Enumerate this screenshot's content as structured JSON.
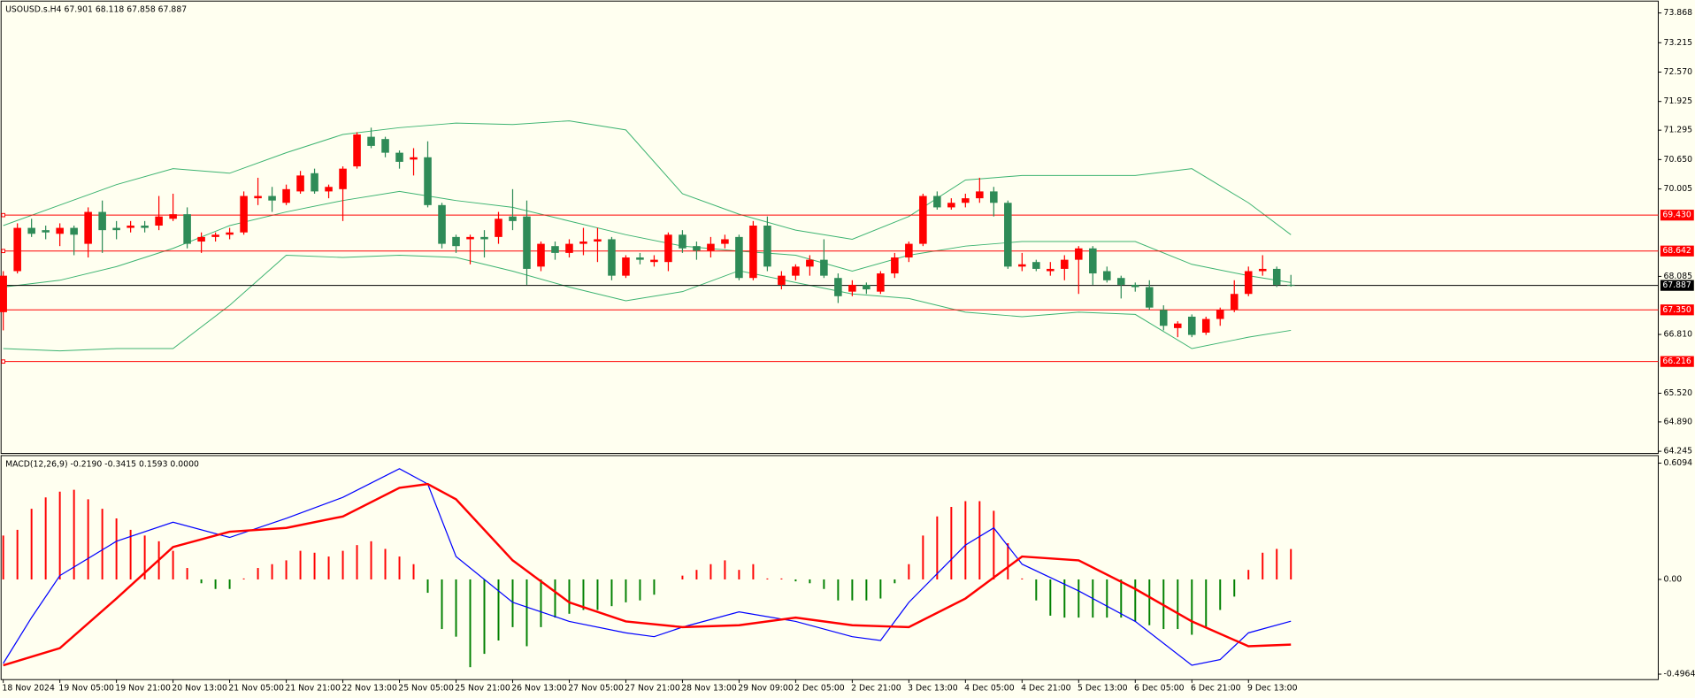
{
  "chart_data": [
    {
      "type": "candlestick",
      "title": "USOUSD.s.H4  67.901 68.118 67.858 67.887",
      "categories": [
        "18 Nov 2024",
        null,
        null,
        null,
        "19 Nov 05:00",
        null,
        null,
        null,
        "19 Nov 21:00",
        null,
        null,
        null,
        "20 Nov 13:00",
        null,
        null,
        null,
        "21 Nov 05:00",
        null,
        null,
        null,
        "21 Nov 21:00",
        null,
        null,
        null,
        "22 Nov 13:00",
        null,
        null,
        null,
        "25 Nov 05:00",
        null,
        null,
        null,
        "25 Nov 21:00",
        null,
        null,
        null,
        "26 Nov 13:00",
        null,
        null,
        null,
        "27 Nov 05:00",
        null,
        null,
        null,
        "27 Nov 21:00",
        null,
        null,
        null,
        "28 Nov 13:00",
        null,
        null,
        null,
        "29 Nov 09:00",
        null,
        null,
        null,
        "2 Dec 05:00",
        null,
        null,
        null,
        "2 Dec 21:00",
        null,
        null,
        null,
        "3 Dec 13:00",
        null,
        null,
        null,
        "4 Dec 05:00",
        null,
        null,
        null,
        "4 Dec 21:00",
        null,
        null,
        null,
        "5 Dec 13:00",
        null,
        null,
        null,
        "6 Dec 05:00",
        null,
        null,
        null,
        "6 Dec 21:00",
        null,
        null,
        null,
        "9 Dec 13:00",
        null,
        null,
        null
      ],
      "open": [
        67.3,
        68.2,
        69.15,
        69.1,
        69.02,
        69.15,
        68.8,
        69.5,
        69.15,
        69.15,
        69.2,
        69.2,
        69.35,
        69.45,
        68.85,
        68.95,
        69.0,
        69.05,
        69.8,
        69.85,
        69.7,
        69.95,
        70.35,
        69.95,
        70.0,
        70.5,
        71.15,
        71.1,
        70.8,
        70.65,
        70.7,
        69.65,
        68.95,
        68.9,
        68.95,
        68.95,
        69.4,
        69.4,
        68.3,
        68.75,
        68.6,
        68.8,
        68.85,
        68.9,
        68.1,
        68.5,
        68.4,
        68.4,
        69.0,
        68.75,
        68.65,
        68.8,
        68.95,
        68.05,
        69.2,
        67.9,
        68.1,
        68.3,
        68.45,
        68.05,
        67.75,
        67.9,
        67.75,
        68.15,
        68.5,
        68.8,
        69.85,
        69.6,
        69.7,
        69.8,
        69.95,
        69.7,
        68.3,
        68.4,
        68.2,
        68.25,
        68.45,
        68.7,
        68.2,
        68.05,
        67.9,
        67.85,
        67.35,
        66.95,
        67.2,
        66.85,
        67.15,
        67.35,
        67.7,
        68.2,
        68.25,
        67.901
      ],
      "high": [
        68.2,
        69.25,
        69.35,
        69.2,
        69.25,
        69.2,
        69.6,
        69.75,
        69.3,
        69.3,
        69.3,
        69.85,
        69.9,
        69.6,
        69.05,
        69.05,
        69.15,
        69.95,
        70.25,
        70.05,
        70.1,
        70.4,
        70.45,
        70.1,
        70.5,
        71.25,
        71.35,
        71.15,
        70.85,
        70.9,
        71.05,
        69.7,
        69.0,
        69.0,
        69.1,
        69.5,
        70.0,
        69.75,
        68.85,
        68.85,
        68.9,
        69.15,
        69.15,
        68.95,
        68.55,
        68.6,
        68.55,
        69.05,
        69.1,
        68.85,
        68.95,
        69.0,
        69.0,
        69.3,
        69.4,
        68.2,
        68.35,
        68.55,
        68.9,
        68.15,
        68.0,
        67.95,
        68.2,
        68.6,
        68.85,
        69.9,
        69.95,
        69.8,
        69.9,
        70.25,
        70.05,
        69.75,
        68.6,
        68.45,
        68.4,
        68.55,
        68.75,
        68.75,
        68.3,
        68.1,
        67.95,
        68.0,
        67.45,
        67.1,
        67.25,
        67.2,
        67.4,
        68.0,
        68.3,
        68.55,
        68.3,
        68.118
      ],
      "low": [
        66.9,
        68.15,
        68.95,
        68.9,
        68.75,
        68.55,
        68.5,
        68.6,
        68.9,
        69.05,
        69.05,
        69.1,
        69.3,
        68.7,
        68.6,
        68.85,
        68.9,
        69.0,
        69.65,
        69.5,
        69.65,
        69.9,
        69.9,
        69.8,
        69.3,
        70.45,
        70.9,
        70.7,
        70.45,
        70.3,
        69.6,
        68.7,
        68.6,
        68.35,
        68.5,
        68.8,
        69.1,
        67.9,
        68.2,
        68.45,
        68.5,
        68.55,
        68.4,
        68.0,
        68.05,
        68.35,
        68.3,
        68.2,
        68.6,
        68.45,
        68.5,
        68.7,
        68.0,
        68.0,
        68.2,
        67.8,
        68.0,
        68.1,
        68.05,
        67.5,
        67.65,
        67.7,
        67.7,
        68.05,
        68.4,
        68.75,
        69.55,
        69.55,
        69.6,
        69.7,
        69.4,
        68.25,
        68.2,
        68.2,
        68.1,
        68.0,
        67.7,
        67.9,
        67.95,
        67.6,
        67.75,
        67.35,
        66.9,
        66.75,
        66.75,
        66.8,
        67.0,
        67.3,
        67.65,
        68.1,
        67.85,
        67.858
      ],
      "close": [
        68.1,
        69.15,
        69.02,
        69.05,
        69.15,
        69.0,
        69.5,
        69.1,
        69.1,
        69.2,
        69.15,
        69.4,
        69.45,
        68.8,
        68.95,
        69.0,
        69.05,
        69.85,
        69.85,
        69.75,
        70.0,
        70.3,
        69.95,
        70.05,
        70.45,
        71.2,
        70.95,
        70.8,
        70.6,
        70.7,
        69.65,
        68.8,
        68.75,
        68.95,
        68.9,
        69.35,
        69.3,
        68.25,
        68.8,
        68.6,
        68.8,
        68.85,
        68.9,
        68.1,
        68.5,
        68.45,
        68.45,
        69.0,
        68.7,
        68.65,
        68.8,
        68.9,
        68.05,
        69.2,
        68.3,
        68.1,
        68.3,
        68.45,
        68.1,
        67.65,
        67.9,
        67.8,
        68.15,
        68.5,
        68.8,
        69.85,
        69.6,
        69.7,
        69.8,
        69.95,
        69.7,
        68.3,
        68.35,
        68.25,
        68.25,
        68.45,
        68.7,
        68.15,
        68.0,
        67.9,
        67.85,
        67.4,
        67.0,
        67.05,
        66.8,
        67.15,
        67.35,
        67.7,
        68.2,
        68.25,
        67.9,
        67.887
      ],
      "up_color": "#ff0000",
      "down_color": "#2e8b57",
      "bands": {
        "color": "#3cb371",
        "x": [
          0,
          4,
          8,
          12,
          16,
          20,
          24,
          28,
          32,
          36,
          40,
          44,
          48,
          52,
          56,
          60,
          64,
          68,
          72,
          76,
          80,
          84,
          88,
          91
        ],
        "upper": [
          69.2,
          69.65,
          70.1,
          70.45,
          70.35,
          70.8,
          71.2,
          71.35,
          71.45,
          71.42,
          71.5,
          71.3,
          69.9,
          69.45,
          69.1,
          68.9,
          69.4,
          70.2,
          70.3,
          70.3,
          70.3,
          70.45,
          69.7,
          69.0
        ],
        "middle": [
          67.85,
          68.0,
          68.3,
          68.7,
          69.2,
          69.5,
          69.75,
          69.95,
          69.75,
          69.6,
          69.3,
          69.0,
          68.75,
          68.64,
          68.55,
          68.2,
          68.55,
          68.75,
          68.85,
          68.85,
          68.85,
          68.35,
          68.1,
          67.95
        ],
        "lower": [
          66.5,
          66.45,
          66.5,
          66.5,
          67.45,
          68.55,
          68.5,
          68.55,
          68.5,
          68.2,
          67.85,
          67.55,
          67.75,
          68.21,
          67.95,
          67.7,
          67.6,
          67.3,
          67.2,
          67.3,
          67.25,
          66.5,
          66.75,
          66.9
        ]
      },
      "levels": [
        {
          "value": 69.43,
          "label": "69.430"
        },
        68.642,
        {
          "value": 67.35,
          "label": "67.350"
        },
        66.216
      ],
      "level_color": "#ff0000",
      "last_price": 67.887,
      "last_price_color": "#000000",
      "ylim": [
        64.198,
        74.129
      ],
      "yticks": [
        73.868,
        73.215,
        {
          "value": 72.57,
          "label": "72.570"
        },
        71.925,
        71.295,
        {
          "value": 70.65,
          "label": "70.650"
        },
        70.005,
        68.085,
        {
          "value": 66.81,
          "label": "66.810"
        },
        {
          "value": 65.52,
          "label": "65.520"
        },
        {
          "value": 64.89,
          "label": "64.890"
        },
        64.245
      ]
    },
    {
      "type": "macd",
      "title": "MACD(12,26,9) -0.2190 -0.3415 0.1593 0.0000",
      "histogram": [
        0.23,
        0.26,
        0.37,
        0.43,
        0.46,
        0.47,
        0.42,
        0.37,
        0.32,
        0.26,
        0.23,
        0.2,
        0.15,
        0.06,
        -0.02,
        -0.05,
        -0.05,
        0.005,
        0.06,
        0.08,
        0.1,
        0.15,
        0.14,
        0.12,
        0.15,
        0.18,
        0.2,
        0.16,
        0.12,
        0.08,
        -0.07,
        -0.26,
        -0.3,
        -0.46,
        -0.39,
        -0.32,
        -0.25,
        -0.35,
        -0.25,
        -0.2,
        -0.18,
        -0.16,
        -0.16,
        -0.14,
        -0.12,
        -0.11,
        -0.08,
        0.0,
        0.02,
        0.05,
        0.08,
        0.1,
        0.05,
        0.08,
        0.005,
        0.005,
        -0.01,
        -0.02,
        -0.05,
        -0.11,
        -0.11,
        -0.11,
        -0.1,
        -0.02,
        0.08,
        0.23,
        0.33,
        0.38,
        0.41,
        0.41,
        0.36,
        0.19,
        0.005,
        -0.11,
        -0.19,
        -0.2,
        -0.2,
        -0.2,
        -0.2,
        -0.2,
        -0.22,
        -0.24,
        -0.26,
        -0.26,
        -0.29,
        -0.25,
        -0.16,
        -0.09,
        0.05,
        0.14,
        0.16,
        0.1593
      ],
      "up_color": "#ff0000",
      "down_color": "#008000",
      "series": [
        {
          "color": "#0000ff",
          "width": 1,
          "x": [
            0,
            2,
            4,
            8,
            12,
            16,
            20,
            24,
            28,
            30,
            32,
            36,
            40,
            44,
            46,
            48,
            52,
            56,
            60,
            62,
            64,
            68,
            70,
            72,
            76,
            80,
            84,
            86,
            88,
            91
          ],
          "values": [
            -0.44,
            -0.2,
            0.02,
            0.2,
            0.3,
            0.22,
            0.32,
            0.43,
            0.58,
            0.5,
            0.12,
            -0.12,
            -0.22,
            -0.28,
            -0.3,
            -0.25,
            -0.17,
            -0.22,
            -0.3,
            -0.32,
            -0.12,
            0.18,
            0.27,
            0.08,
            -0.06,
            -0.22,
            -0.45,
            -0.42,
            -0.28,
            -0.219
          ]
        },
        {
          "color": "#ff0000",
          "width": 2,
          "x": [
            0,
            4,
            8,
            12,
            16,
            20,
            24,
            28,
            30,
            32,
            36,
            40,
            44,
            48,
            52,
            56,
            60,
            64,
            68,
            72,
            76,
            80,
            84,
            88,
            91
          ],
          "values": [
            -0.45,
            -0.36,
            -0.1,
            0.17,
            0.25,
            0.27,
            0.33,
            0.48,
            0.5,
            0.42,
            0.1,
            -0.12,
            -0.22,
            -0.25,
            -0.24,
            -0.2,
            -0.24,
            -0.25,
            -0.1,
            0.12,
            0.1,
            -0.05,
            -0.22,
            -0.35,
            -0.3415
          ]
        }
      ],
      "ylim": [
        -0.525,
        0.649
      ],
      "yticks": [
        0.6094,
        {
          "value": 0,
          "label": "0.00"
        },
        -0.4964
      ]
    }
  ]
}
